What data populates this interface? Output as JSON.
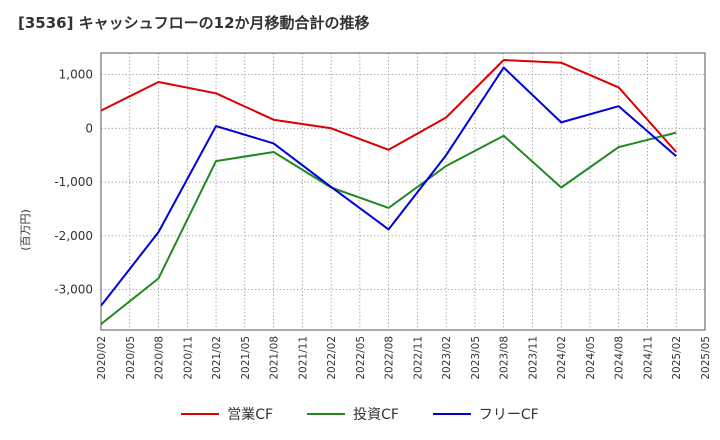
{
  "title": "[3536]  キャッシュフローの12か月移動合計の推移",
  "chart_data": {
    "type": "line",
    "title": "[3536]  キャッシュフローの12か月移動合計の推移",
    "ylabel": "(百万円)",
    "xlabel": "",
    "ylim": [
      -3750,
      1400
    ],
    "yticks": [
      1000,
      0,
      -1000,
      -2000,
      -3000
    ],
    "ytick_labels": [
      "1,000",
      "0",
      "-1,000",
      "-2,000",
      "-3,000"
    ],
    "xlim": [
      "2020/02",
      "2025/05"
    ],
    "xtick_labels": [
      "2020/02",
      "2020/05",
      "2020/08",
      "2020/11",
      "2021/02",
      "2021/05",
      "2021/08",
      "2021/11",
      "2022/02",
      "2022/05",
      "2022/08",
      "2022/11",
      "2023/02",
      "2023/05",
      "2023/08",
      "2023/11",
      "2024/02",
      "2024/05",
      "2024/08",
      "2024/11",
      "2025/02",
      "2025/05"
    ],
    "grid": true,
    "legend_position": "bottom",
    "x": [
      "2020/02",
      "2020/08",
      "2021/02",
      "2021/08",
      "2022/02",
      "2022/08",
      "2023/02",
      "2023/08",
      "2024/02",
      "2024/08",
      "2025/02"
    ],
    "series": [
      {
        "name": "営業CF",
        "color": "#dd0000",
        "values": [
          330,
          860,
          650,
          160,
          0,
          -400,
          200,
          1270,
          1220,
          760,
          -440
        ]
      },
      {
        "name": "投資CF",
        "color": "#228822",
        "values": [
          -3640,
          -2790,
          -610,
          -440,
          -1100,
          -1480,
          -700,
          -140,
          -1100,
          -350,
          -80
        ]
      },
      {
        "name": "フリーCF",
        "color": "#0000dd",
        "values": [
          -3300,
          -1930,
          40,
          -280,
          -1090,
          -1880,
          -500,
          1130,
          110,
          410,
          -520
        ]
      }
    ]
  }
}
